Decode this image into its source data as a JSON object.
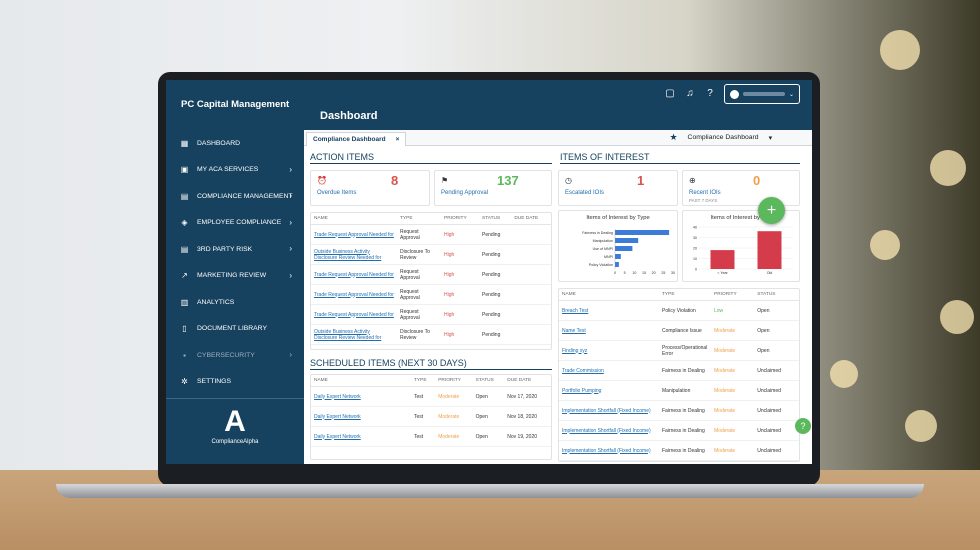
{
  "app": {
    "brand": "PC Capital Management",
    "page_title": "Dashboard"
  },
  "sidebar": {
    "items": [
      {
        "label": "DASHBOARD",
        "icon": "grid-icon",
        "chevron": false,
        "disabled": false
      },
      {
        "label": "MY ACA SERVICES",
        "icon": "calendar-icon",
        "chevron": true,
        "disabled": false
      },
      {
        "label": "COMPLIANCE MANAGEMENT",
        "icon": "clipboard-icon",
        "chevron": true,
        "disabled": false
      },
      {
        "label": "EMPLOYEE COMPLIANCE",
        "icon": "layers-icon",
        "chevron": true,
        "disabled": false
      },
      {
        "label": "3RD PARTY RISK",
        "icon": "list-icon",
        "chevron": true,
        "disabled": false
      },
      {
        "label": "MARKETING REVIEW",
        "icon": "trend-icon",
        "chevron": true,
        "disabled": false
      },
      {
        "label": "ANALYTICS",
        "icon": "bar-chart-icon",
        "chevron": false,
        "disabled": false
      },
      {
        "label": "DOCUMENT LIBRARY",
        "icon": "document-icon",
        "chevron": false,
        "disabled": false
      },
      {
        "label": "CYBERSECURITY",
        "icon": "lock-icon",
        "chevron": true,
        "disabled": true
      },
      {
        "label": "SETTINGS",
        "icon": "gear-icon",
        "chevron": false,
        "disabled": false
      }
    ],
    "logo_text": "ComplianceAlpha"
  },
  "tabs": {
    "active": "Compliance Dashboard",
    "close": "×",
    "selector": "Compliance Dashboard",
    "add": "+"
  },
  "action_items": {
    "title": "ACTION ITEMS",
    "stats": [
      {
        "label": "Overdue Items",
        "value": "8",
        "color": "#d9534f",
        "icon": "alarm-icon"
      },
      {
        "label": "Pending Approval",
        "value": "137",
        "color": "#5cb85c",
        "icon": "flag-icon"
      }
    ],
    "columns": [
      "NAME",
      "TYPE",
      "PRIORITY",
      "STATUS",
      "DUE DATE"
    ],
    "rows": [
      [
        "Trade Request Approval Needed for",
        "Request Approval",
        "High",
        "Pending",
        ""
      ],
      [
        "Outside Business Activity Disclosure Review Needed for",
        "Disclosure To Review",
        "High",
        "Pending",
        ""
      ],
      [
        "Trade Request Approval Needed for",
        "Request Approval",
        "High",
        "Pending",
        ""
      ],
      [
        "Trade Request Approval Needed for",
        "Request Approval",
        "High",
        "Pending",
        ""
      ],
      [
        "Trade Request Approval Needed for",
        "Request Approval",
        "High",
        "Pending",
        ""
      ],
      [
        "Outside Business Activity Disclosure Review Needed for",
        "Disclosure To Review",
        "High",
        "Pending",
        ""
      ]
    ]
  },
  "scheduled": {
    "title": "SCHEDULED ITEMS (NEXT 30 DAYS)",
    "columns": [
      "NAME",
      "TYPE",
      "PRIORITY",
      "STATUS",
      "DUE DATE"
    ],
    "rows": [
      [
        "Daily Expert Network",
        "Test",
        "Moderate",
        "Open",
        "Nov 17, 2020"
      ],
      [
        "Daily Expert Network",
        "Test",
        "Moderate",
        "Open",
        "Nov 18, 2020"
      ],
      [
        "Daily Expert Network",
        "Test",
        "Moderate",
        "Open",
        "Nov 19, 2020"
      ]
    ]
  },
  "ioi": {
    "title": "ITEMS OF INTEREST",
    "stats": [
      {
        "label": "Escalated IOIs",
        "value": "1",
        "color": "#d9534f",
        "icon": "clock-icon",
        "sub": ""
      },
      {
        "label": "Recent IOIs",
        "value": "0",
        "color": "#f0a04b",
        "icon": "plus-circle-icon",
        "sub": "PAST 7 DAYS"
      }
    ],
    "columns": [
      "NAME",
      "TYPE",
      "PRIORITY",
      "STATUS"
    ],
    "rows": [
      [
        "Breach Test",
        "Policy Violation",
        "Low",
        "Open"
      ],
      [
        "Name Test",
        "Compliance Issue",
        "Moderate",
        "Open"
      ],
      [
        "Finding xyz",
        "Process/Operational Error",
        "Moderate",
        "Open"
      ],
      [
        "Trade Commission",
        "Fairness in Dealing",
        "Moderate",
        "Unclaimed"
      ],
      [
        "Portfolio Pumping",
        "Manipulation",
        "Moderate",
        "Unclaimed"
      ],
      [
        "Implementation Shortfall (Fixed Income)",
        "Fairness in Dealing",
        "Moderate",
        "Unclaimed"
      ],
      [
        "Implementation Shortfall (Fixed Income)",
        "Fairness in Dealing",
        "Moderate",
        "Unclaimed"
      ],
      [
        "Implementation Shortfall (Fixed Income)",
        "Fairness in Dealing",
        "Moderate",
        "Unclaimed"
      ]
    ]
  },
  "chart_data": [
    {
      "type": "bar",
      "orientation": "horizontal",
      "title": "Items of Interest by Type",
      "categories": [
        "Fairness in Dealing",
        "Manipulation",
        "Use of MNPI",
        "MNPI",
        "Policy Violation"
      ],
      "values": [
        28,
        12,
        9,
        3,
        2
      ],
      "xlim": [
        0,
        30
      ],
      "ticks": [
        "0",
        "5",
        "10",
        "15",
        "20",
        "25",
        "30"
      ],
      "color": "#3d7bd9"
    },
    {
      "type": "bar",
      "title": "Items of Interest by Age",
      "categories": [
        "< Year",
        "Old"
      ],
      "values": [
        18,
        36
      ],
      "ylim": [
        0,
        40
      ],
      "ticks": [
        "0",
        "10",
        "20",
        "30",
        "40"
      ],
      "color": "#d43b4b"
    }
  ],
  "colors": {
    "navy": "#17425f",
    "green": "#5cb85c",
    "red": "#d9534f",
    "orange": "#f0a04b"
  }
}
